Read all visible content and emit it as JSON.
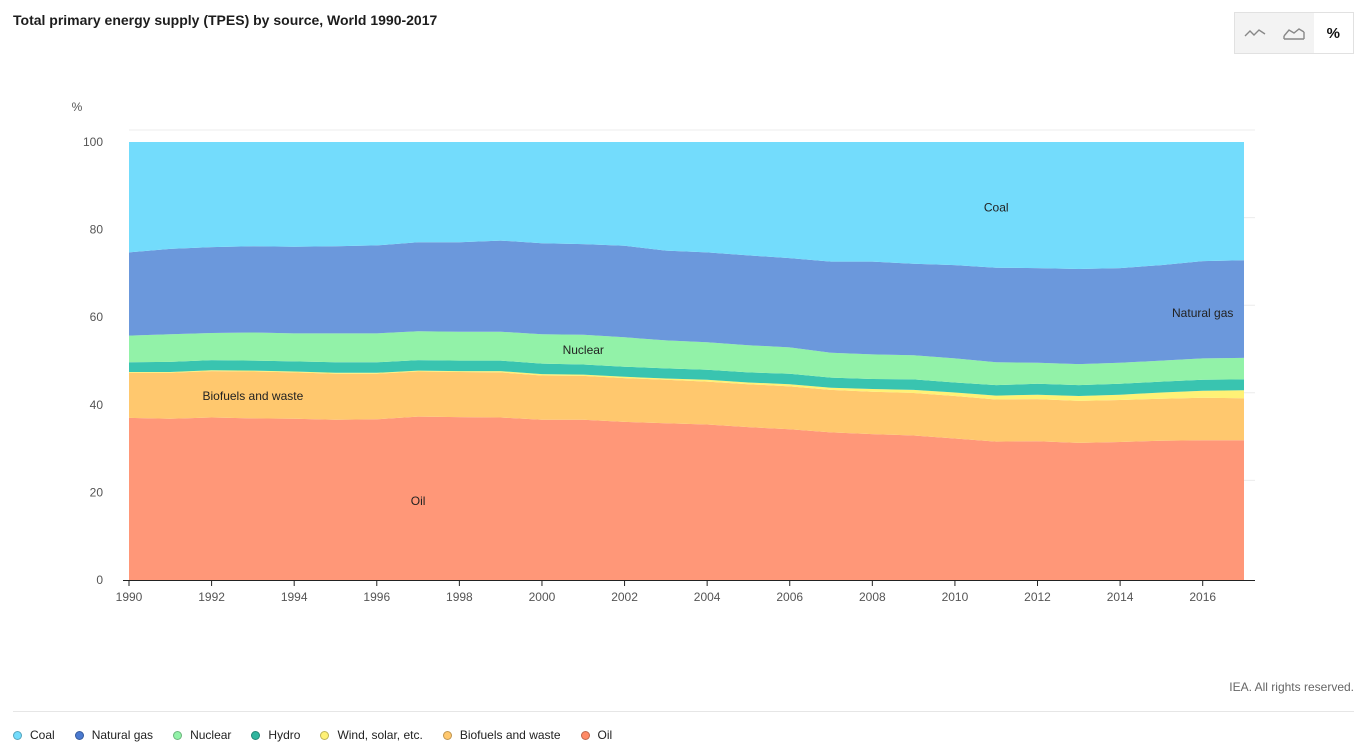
{
  "header": {
    "title": "Total primary energy supply (TPES) by source, World 1990-2017"
  },
  "view_toggle": {
    "options": [
      "line-chart-icon",
      "area-chart-icon",
      "percent"
    ],
    "percent_label": "%",
    "active": "percent"
  },
  "credit": "IEA. All rights reserved.",
  "chart_data": {
    "type": "area",
    "stacked": true,
    "normalized": true,
    "title": "Total primary energy supply (TPES) by source, World 1990-2017",
    "ylabel": "%",
    "xlabel": "",
    "ylim": [
      0,
      100
    ],
    "xlim": [
      1990,
      2017
    ],
    "y_ticks": [
      0,
      20,
      40,
      60,
      80,
      100
    ],
    "x_ticks": [
      1990,
      1992,
      1994,
      1996,
      1998,
      2000,
      2002,
      2004,
      2006,
      2008,
      2010,
      2012,
      2014,
      2016
    ],
    "grid": true,
    "legend_position": "bottom",
    "x": [
      1990,
      1991,
      1992,
      1993,
      1994,
      1995,
      1996,
      1997,
      1998,
      1999,
      2000,
      2001,
      2002,
      2003,
      2004,
      2005,
      2006,
      2007,
      2008,
      2009,
      2010,
      2011,
      2012,
      2013,
      2014,
      2015,
      2016,
      2017
    ],
    "series": [
      {
        "name": "Oil",
        "color": "#ff9778",
        "values": [
          37,
          36.8,
          37.1,
          36.9,
          36.8,
          36.6,
          36.7,
          37.3,
          37.2,
          37.1,
          36.6,
          36.6,
          36.1,
          35.8,
          35.5,
          34.9,
          34.4,
          33.7,
          33.3,
          33.0,
          32.3,
          31.6,
          31.7,
          31.3,
          31.5,
          31.8,
          31.9,
          31.9
        ]
      },
      {
        "name": "Biofuels and waste",
        "color": "#ffc86e",
        "values": [
          10.3,
          10.5,
          10.6,
          10.7,
          10.6,
          10.5,
          10.4,
          10.3,
          10.3,
          10.3,
          10.1,
          10.0,
          10.0,
          9.9,
          9.8,
          9.8,
          9.8,
          9.7,
          9.7,
          9.7,
          9.7,
          9.6,
          9.6,
          9.6,
          9.6,
          9.6,
          9.7,
          9.6
        ]
      },
      {
        "name": "Wind, solar, etc.",
        "color": "#fff176",
        "values": [
          0.2,
          0.2,
          0.2,
          0.2,
          0.2,
          0.2,
          0.2,
          0.2,
          0.2,
          0.3,
          0.3,
          0.3,
          0.3,
          0.3,
          0.4,
          0.4,
          0.5,
          0.5,
          0.6,
          0.7,
          0.8,
          0.9,
          1.0,
          1.1,
          1.2,
          1.4,
          1.6,
          1.8
        ]
      },
      {
        "name": "Hydro",
        "color": "#39c4b0",
        "values": [
          2.2,
          2.3,
          2.3,
          2.3,
          2.3,
          2.4,
          2.4,
          2.4,
          2.4,
          2.4,
          2.4,
          2.3,
          2.3,
          2.3,
          2.3,
          2.3,
          2.4,
          2.3,
          2.3,
          2.4,
          2.3,
          2.4,
          2.5,
          2.5,
          2.5,
          2.5,
          2.5,
          2.5
        ]
      },
      {
        "name": "Nuclear",
        "color": "#92f2a8",
        "values": [
          6.1,
          6.3,
          6.2,
          6.4,
          6.4,
          6.6,
          6.6,
          6.6,
          6.6,
          6.6,
          6.7,
          6.8,
          6.7,
          6.4,
          6.3,
          6.2,
          6.0,
          5.7,
          5.6,
          5.5,
          5.5,
          5.2,
          4.8,
          4.8,
          4.8,
          4.8,
          4.9,
          4.9
        ]
      },
      {
        "name": "Natural gas",
        "color": "#6b98dc",
        "values": [
          19.0,
          19.5,
          19.6,
          19.7,
          19.8,
          19.9,
          20.1,
          20.3,
          20.4,
          20.8,
          20.8,
          20.7,
          20.9,
          20.5,
          20.5,
          20.5,
          20.4,
          20.8,
          21.2,
          20.9,
          21.3,
          21.6,
          21.6,
          21.7,
          21.6,
          21.8,
          22.2,
          22.3
        ]
      },
      {
        "name": "Coal",
        "color": "#73dcfc",
        "values": [
          25.2,
          24.4,
          24.0,
          23.8,
          23.9,
          23.8,
          23.6,
          22.9,
          22.9,
          22.5,
          23.1,
          23.3,
          23.7,
          24.8,
          25.2,
          25.9,
          26.5,
          27.3,
          27.3,
          27.8,
          28.1,
          28.7,
          28.8,
          29.0,
          28.8,
          28.1,
          27.2,
          27.0
        ]
      }
    ],
    "annotations": [
      {
        "text": "Coal",
        "x": 2011,
        "y": 85
      },
      {
        "text": "Natural gas",
        "x": 2016,
        "y": 61
      },
      {
        "text": "Nuclear",
        "x": 2001,
        "y": 52.5
      },
      {
        "text": "Biofuels and waste",
        "x": 1993,
        "y": 42
      },
      {
        "text": "Oil",
        "x": 1997,
        "y": 18
      }
    ]
  },
  "legend": [
    {
      "label": "Coal",
      "color": "#73dcfc"
    },
    {
      "label": "Natural gas",
      "color": "#4a7ad0"
    },
    {
      "label": "Nuclear",
      "color": "#92f2a8"
    },
    {
      "label": "Hydro",
      "color": "#2fb59e"
    },
    {
      "label": "Wind, solar, etc.",
      "color": "#fff176"
    },
    {
      "label": "Biofuels and waste",
      "color": "#ffc86e"
    },
    {
      "label": "Oil",
      "color": "#ff8a65"
    }
  ]
}
